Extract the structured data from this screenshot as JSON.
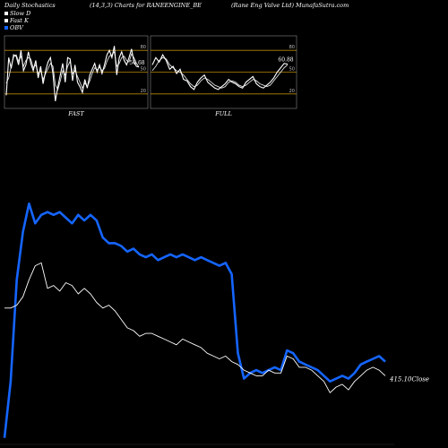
{
  "header": {
    "left": "Daily Stochastics",
    "middle": "(14,3,3) Charts for RANEENGINE_BE",
    "right": "(Rane  Eng Valve  Ltd) MunafaSutra.com"
  },
  "legend": [
    {
      "label": "Slow  D",
      "color": "#ffffff"
    },
    {
      "label": "Fast K",
      "color": "#ffffff"
    },
    {
      "label": "OBV",
      "color": "#1565ff"
    }
  ],
  "colors": {
    "background": "#000000",
    "obv_line": "#1565ff",
    "close_line": "#ffffff",
    "level_line": "#b8860b",
    "panel_border": "#888888"
  },
  "chart_data": [
    {
      "type": "line",
      "panel": "FAST",
      "label": "FAST",
      "ylim": [
        0,
        100
      ],
      "levels": [
        20,
        50,
        80
      ],
      "level_labels": [
        "20",
        "50",
        "80"
      ],
      "last_value_label": "56.68",
      "series": [
        {
          "values": [
            35,
            42,
            58,
            71,
            74,
            65,
            72,
            58,
            66,
            70,
            68,
            56,
            60,
            48,
            52,
            40,
            48,
            55,
            62,
            58,
            32,
            26,
            38,
            52,
            46,
            58,
            65,
            48,
            52,
            44,
            36,
            28,
            35,
            30,
            38,
            48,
            56,
            53,
            57,
            52,
            55,
            65,
            72,
            74,
            78,
            58,
            62,
            70,
            72,
            66,
            64,
            75,
            70,
            62,
            57
          ]
        },
        {
          "values": [
            18,
            70,
            55,
            74,
            72,
            60,
            80,
            52,
            60,
            78,
            62,
            52,
            66,
            42,
            58,
            34,
            52,
            64,
            70,
            48,
            10,
            30,
            46,
            62,
            36,
            70,
            68,
            38,
            60,
            36,
            30,
            22,
            40,
            28,
            46,
            54,
            62,
            50,
            60,
            48,
            60,
            74,
            80,
            70,
            86,
            46,
            70,
            78,
            66,
            60,
            70,
            82,
            64,
            58,
            57
          ]
        }
      ]
    },
    {
      "type": "line",
      "panel": "FULL",
      "label": "FULL",
      "ylim": [
        0,
        100
      ],
      "levels": [
        20,
        50,
        80
      ],
      "level_labels": [
        "20",
        "50",
        "80"
      ],
      "last_value_label": "60.88",
      "series": [
        {
          "values": [
            52,
            58,
            66,
            70,
            68,
            60,
            56,
            52,
            50,
            46,
            40,
            34,
            30,
            32,
            38,
            42,
            40,
            36,
            32,
            30,
            28,
            30,
            36,
            38,
            36,
            32,
            30,
            32,
            36,
            40,
            38,
            34,
            32,
            30,
            32,
            38,
            44,
            50,
            56,
            60
          ]
        },
        {
          "values": [
            60,
            70,
            64,
            74,
            66,
            54,
            58,
            48,
            54,
            40,
            38,
            30,
            26,
            36,
            42,
            46,
            36,
            32,
            28,
            26,
            30,
            34,
            40,
            36,
            34,
            30,
            28,
            36,
            40,
            44,
            34,
            30,
            28,
            32,
            36,
            42,
            50,
            56,
            62,
            61
          ]
        }
      ]
    },
    {
      "type": "line",
      "panel": "price",
      "ylim": [
        0,
        100
      ],
      "last_value_label": "415.10Close",
      "series": [
        {
          "name": "OBV",
          "values": [
            2,
            22,
            58,
            75,
            85,
            78,
            81,
            82,
            81,
            82,
            80,
            78,
            81,
            79,
            81,
            79,
            73,
            71,
            71,
            70,
            68,
            69,
            67,
            66,
            67,
            65,
            66,
            67,
            66,
            67,
            66,
            65,
            66,
            65,
            64,
            63,
            64,
            60,
            32,
            23,
            25,
            26,
            25,
            26,
            27,
            26,
            33,
            32,
            29,
            28,
            27,
            26,
            24,
            22,
            23,
            24,
            23,
            25,
            28,
            29,
            30,
            31,
            29
          ]
        },
        {
          "name": "Close",
          "values": [
            48,
            48,
            49,
            52,
            58,
            63,
            64,
            55,
            56,
            54,
            57,
            56,
            53,
            55,
            53,
            50,
            48,
            49,
            47,
            44,
            41,
            40,
            38,
            39,
            39,
            38,
            37,
            36,
            35,
            37,
            36,
            35,
            34,
            32,
            31,
            30,
            31,
            29,
            28,
            26,
            25,
            24,
            24,
            26,
            25,
            25,
            31,
            30,
            27,
            27,
            26,
            24,
            22,
            18,
            20,
            21,
            19,
            22,
            24,
            26,
            27,
            26,
            24
          ]
        }
      ]
    }
  ]
}
